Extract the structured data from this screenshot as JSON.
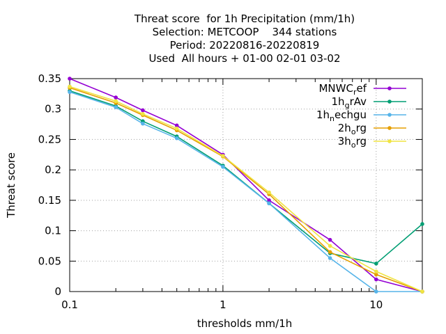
{
  "chart_data": {
    "type": "line",
    "title_lines": [
      "Threat score  for 1h Precipitation (mm/1h)",
      "Selection: METCOOP    344 stations",
      "Period: 20220816-20220819",
      "Used  All hours + 01-00 02-01 03-02"
    ],
    "xlabel": "thresholds mm/1h",
    "ylabel": "Threat score",
    "xscale": "log",
    "xlim": [
      0.1,
      20
    ],
    "ylim": [
      0,
      0.35
    ],
    "xticks": [
      {
        "value": 0.1,
        "label": "0.1"
      },
      {
        "value": 1,
        "label": "1"
      },
      {
        "value": 10,
        "label": "10"
      }
    ],
    "xminor": [
      0.2,
      0.3,
      0.4,
      0.5,
      0.6,
      0.7,
      0.8,
      0.9,
      2,
      3,
      4,
      5,
      6,
      7,
      8,
      9,
      20
    ],
    "yticks": [
      {
        "value": 0,
        "label": "0"
      },
      {
        "value": 0.05,
        "label": "0.05"
      },
      {
        "value": 0.1,
        "label": "0.1"
      },
      {
        "value": 0.15,
        "label": "0.15"
      },
      {
        "value": 0.2,
        "label": "0.2"
      },
      {
        "value": 0.25,
        "label": "0.25"
      },
      {
        "value": 0.3,
        "label": "0.3"
      },
      {
        "value": 0.35,
        "label": "0.35"
      }
    ],
    "grid": true,
    "legend_position": "top-right",
    "x": [
      0.1,
      0.2,
      0.3,
      0.5,
      1,
      2,
      5,
      10,
      20
    ],
    "series": [
      {
        "name": "MNWC_ref",
        "legend": {
          "base": "MNWC",
          "sub": "r",
          "rest": "ef"
        },
        "color": "#9400d3",
        "values": [
          0.35,
          0.319,
          0.298,
          0.273,
          0.225,
          0.15,
          0.085,
          0.02,
          0.0
        ]
      },
      {
        "name": "1h_grAv",
        "legend": {
          "base": "1h",
          "sub": "g",
          "rest": "rAv"
        },
        "color": "#009e73",
        "values": [
          0.33,
          0.305,
          0.28,
          0.255,
          0.207,
          0.145,
          0.063,
          0.046,
          0.111
        ]
      },
      {
        "name": "1h_nechgu",
        "legend": {
          "base": "1h",
          "sub": "n",
          "rest": "echgu"
        },
        "color": "#56b4e9",
        "values": [
          0.328,
          0.303,
          0.276,
          0.252,
          0.205,
          0.145,
          0.055,
          0.0,
          0.0
        ]
      },
      {
        "name": "2h_org",
        "legend": {
          "base": "2h",
          "sub": "o",
          "rest": "rg"
        },
        "color": "#e69f00",
        "values": [
          0.335,
          0.31,
          0.29,
          0.265,
          0.222,
          0.16,
          0.065,
          0.028,
          0.0
        ]
      },
      {
        "name": "3h_org",
        "legend": {
          "base": "3h",
          "sub": "o",
          "rest": "rg"
        },
        "color": "#f0e442",
        "values": [
          0.337,
          0.313,
          0.292,
          0.268,
          0.223,
          0.163,
          0.075,
          0.033,
          0.0
        ]
      }
    ]
  }
}
